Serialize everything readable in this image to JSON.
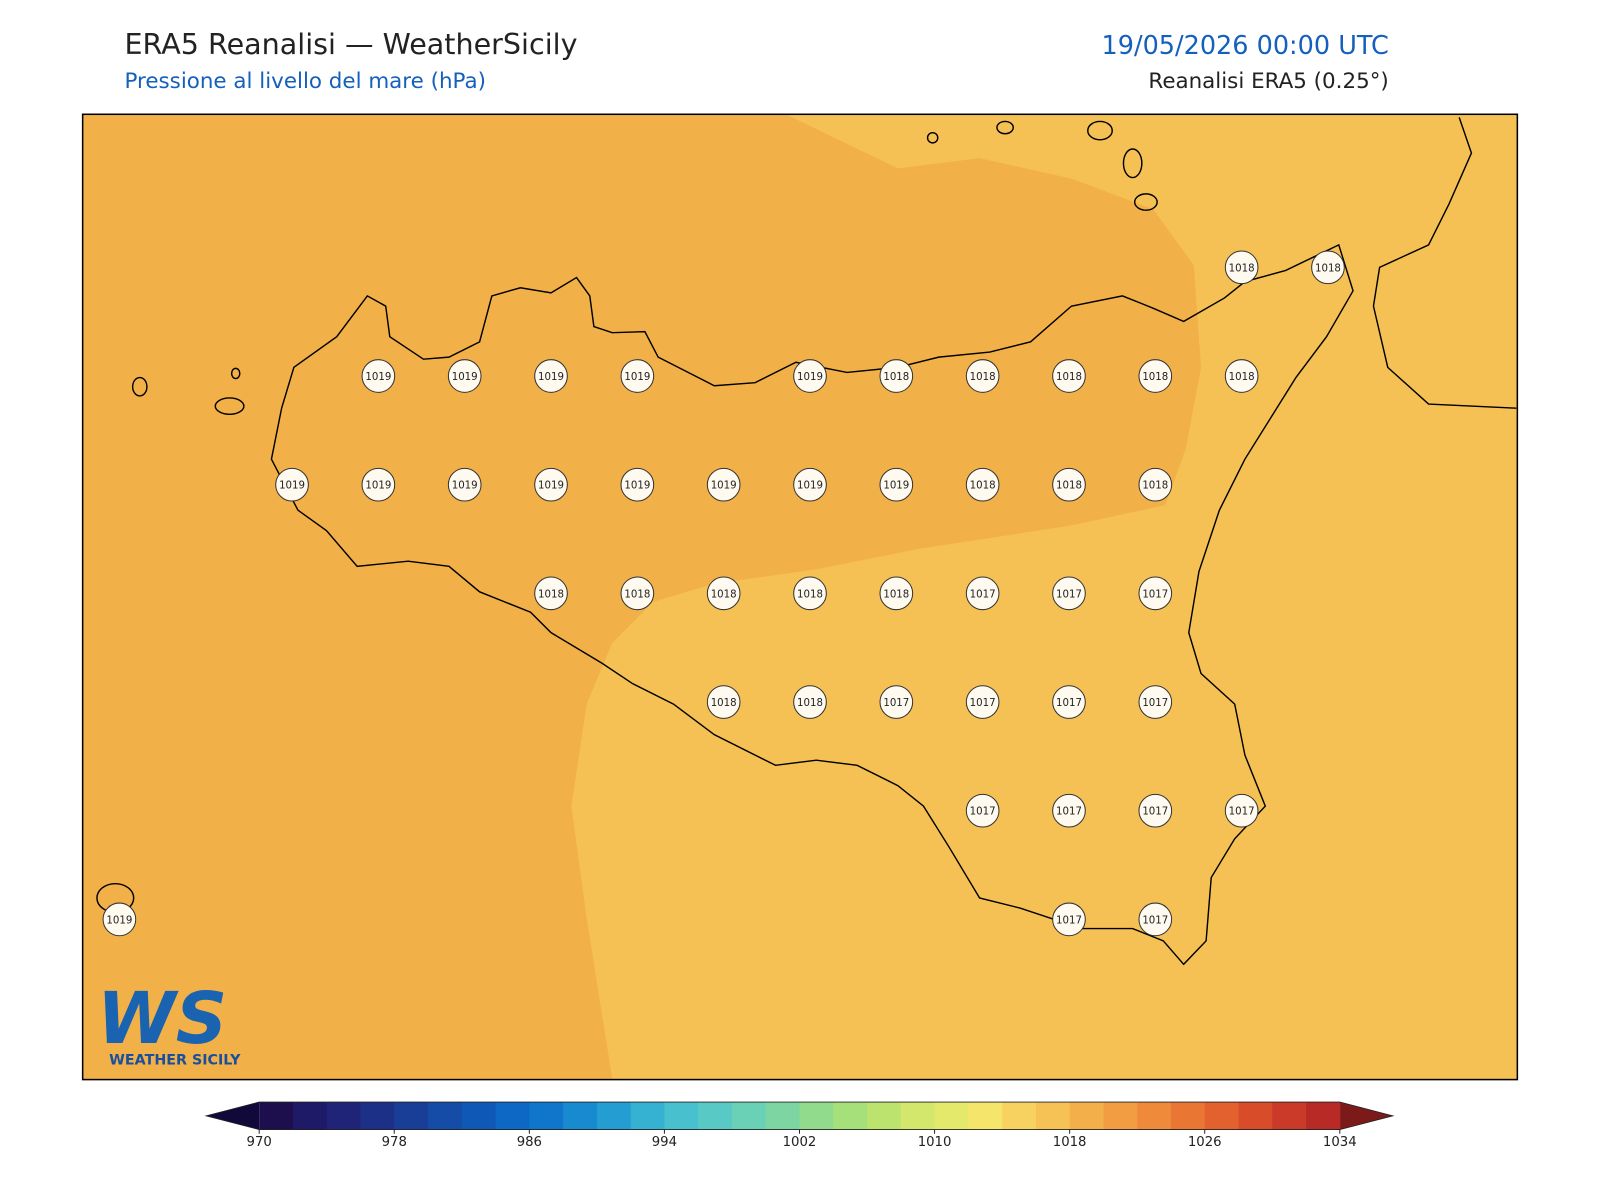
{
  "header": {
    "title": "ERA5 Reanalisi — WeatherSicily",
    "subtitle": "Pressione al livello del mare (hPa)",
    "datetime": "19/05/2026 00:00 UTC",
    "source": "Reanalisi ERA5 (0.25°)"
  },
  "stations": [
    1018,
    1018,
    1019,
    1019,
    1019,
    1019,
    1019,
    1018,
    1018,
    1018,
    1018,
    1018,
    1019,
    1019,
    1019,
    1019,
    1019,
    1019,
    1019,
    1019,
    1018,
    1018,
    1018,
    1018,
    1018,
    1018,
    1018,
    1018,
    1017,
    1017,
    1017,
    1018,
    1018,
    1017,
    1017,
    1017,
    1017,
    1017,
    1017,
    1017,
    1017,
    1019,
    1017,
    1017
  ],
  "colorbar": {
    "ticks": [
      970,
      978,
      986,
      994,
      1002,
      1010,
      1018,
      1026,
      1034
    ],
    "colors": [
      "#1d0f4e",
      "#1f1a68",
      "#1f2478",
      "#1d3088",
      "#183e98",
      "#144ca8",
      "#1058b6",
      "#0d67c4",
      "#0f76cc",
      "#188ad0",
      "#239dd2",
      "#35b2d2",
      "#48c0cd",
      "#58c9c4",
      "#6bd1b6",
      "#7dd6a2",
      "#90dc8c",
      "#a5e07a",
      "#bce36d",
      "#d2e76b",
      "#e4e96b",
      "#f5e56a",
      "#f8d260",
      "#f6c255",
      "#f3b04a",
      "#f29d42",
      "#ef8a3b",
      "#ea7634",
      "#e3612e",
      "#d84c2a",
      "#cb3a28",
      "#b82a26"
    ],
    "under": "#10093a",
    "over": "#7c1a1a"
  },
  "logo": {
    "mark": "WS",
    "text": "WEATHER SICILY"
  }
}
